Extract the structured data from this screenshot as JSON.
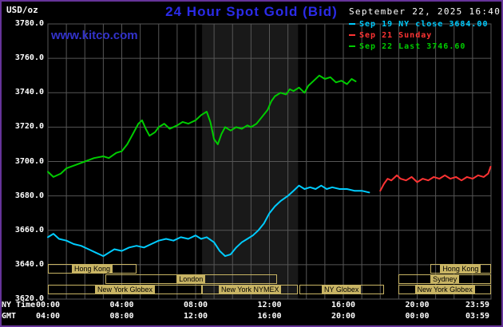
{
  "header": {
    "units": "USD/oz",
    "title": "24 Hour Spot Gold (Bid)",
    "datetime": "September 22, 2025 16:40",
    "watermark": "www.kitco.com"
  },
  "axis_corner": {
    "ny_time": "NY Time",
    "gmt": "GMT"
  },
  "colors": {
    "background": "#000000",
    "border": "#663399",
    "title_blue": "#2B2BE8",
    "watermark_blue": "#3333CC",
    "grid": "#565656",
    "axis_text": "#FFFFFF",
    "session": "#C8B464",
    "session_text": "#000000",
    "nymex_band": "#191919"
  },
  "legend": [
    {
      "label": "Sep 19 NY close 3684.00",
      "color": "#00CCFF"
    },
    {
      "label": "Sep 21 Sunday",
      "color": "#FF3333"
    },
    {
      "label": "Sep 22 Last 3746.60",
      "color": "#00CC00"
    }
  ],
  "chart_data": {
    "type": "line",
    "title": "24 Hour Spot Gold (Bid)",
    "ylabel": "USD/oz",
    "ylim": [
      3620,
      3780
    ],
    "xlim_hours": [
      0,
      24
    ],
    "grid": {
      "x_step_hours": 1,
      "y_step": 20
    },
    "prev_close": 3684.0,
    "last": 3746.6,
    "y_ticks": [
      {
        "value": 3780,
        "label": "3780.0"
      },
      {
        "value": 3760,
        "label": "3760.0"
      },
      {
        "value": 3740,
        "label": "3740.0"
      },
      {
        "value": 3720,
        "label": "3720.0"
      },
      {
        "value": 3700,
        "label": "3700.0"
      },
      {
        "value": 3680,
        "label": "3680.0"
      },
      {
        "value": 3660,
        "label": "3660.0"
      },
      {
        "value": 3640,
        "label": "3640.0"
      },
      {
        "value": 3620,
        "label": "3620.0"
      }
    ],
    "x_ticks": [
      {
        "hour": 0,
        "ny": "00:00",
        "gmt": "04:00"
      },
      {
        "hour": 4,
        "ny": "04:00",
        "gmt": "08:00"
      },
      {
        "hour": 8,
        "ny": "08:00",
        "gmt": "12:00"
      },
      {
        "hour": 12,
        "ny": "12:00",
        "gmt": "16:00"
      },
      {
        "hour": 16,
        "ny": "16:00",
        "gmt": "20:00"
      },
      {
        "hour": 20,
        "ny": "20:00",
        "gmt": "00:00"
      },
      {
        "hour": 23.983,
        "ny": "23:59",
        "gmt": "03:59"
      }
    ],
    "highlight_band": {
      "start_hour": 8.35,
      "end_hour": 13.55
    },
    "sessions": [
      {
        "label": "Hong Kong",
        "row": 0,
        "start": 0,
        "end": 4.8
      },
      {
        "label": "Hong Kong",
        "row": 0,
        "start": 20.7,
        "end": 24
      },
      {
        "label": "London",
        "row": 1,
        "start": 3.1,
        "end": 12.4
      },
      {
        "label": "Sydney",
        "row": 1,
        "start": 19,
        "end": 24
      },
      {
        "label": "New York Globex",
        "row": 2,
        "start": 0,
        "end": 8.35
      },
      {
        "label": "New York NYMEX",
        "row": 2,
        "start": 8.35,
        "end": 13.55
      },
      {
        "label": "NY Globex",
        "row": 2,
        "start": 13.6,
        "end": 18.2
      },
      {
        "label": "New York Globex",
        "row": 2,
        "start": 19,
        "end": 24
      }
    ],
    "series": [
      {
        "name": "Sep 19 NY close",
        "color": "#00CCFF",
        "points": [
          [
            0,
            3656
          ],
          [
            0.3,
            3658
          ],
          [
            0.6,
            3655
          ],
          [
            1,
            3654
          ],
          [
            1.4,
            3652
          ],
          [
            1.8,
            3651
          ],
          [
            2.2,
            3649
          ],
          [
            2.6,
            3647
          ],
          [
            3,
            3645
          ],
          [
            3.3,
            3647
          ],
          [
            3.6,
            3649
          ],
          [
            4,
            3648
          ],
          [
            4.4,
            3650
          ],
          [
            4.8,
            3651
          ],
          [
            5.2,
            3650
          ],
          [
            5.6,
            3652
          ],
          [
            6,
            3654
          ],
          [
            6.4,
            3655
          ],
          [
            6.8,
            3654
          ],
          [
            7.2,
            3656
          ],
          [
            7.6,
            3655
          ],
          [
            8,
            3657
          ],
          [
            8.3,
            3655
          ],
          [
            8.6,
            3656
          ],
          [
            9,
            3653
          ],
          [
            9.3,
            3648
          ],
          [
            9.6,
            3645
          ],
          [
            9.9,
            3646
          ],
          [
            10.2,
            3650
          ],
          [
            10.5,
            3653
          ],
          [
            10.8,
            3655
          ],
          [
            11.1,
            3657
          ],
          [
            11.4,
            3660
          ],
          [
            11.7,
            3664
          ],
          [
            12,
            3670
          ],
          [
            12.3,
            3674
          ],
          [
            12.6,
            3677
          ],
          [
            13,
            3680
          ],
          [
            13.3,
            3683
          ],
          [
            13.6,
            3686
          ],
          [
            13.9,
            3684
          ],
          [
            14.2,
            3685
          ],
          [
            14.5,
            3684
          ],
          [
            14.8,
            3686
          ],
          [
            15.1,
            3684
          ],
          [
            15.4,
            3685
          ],
          [
            15.8,
            3684
          ],
          [
            16.2,
            3684
          ],
          [
            16.6,
            3683
          ],
          [
            17,
            3683
          ],
          [
            17.4,
            3682
          ]
        ]
      },
      {
        "name": "Sep 21 Sunday",
        "color": "#FF3333",
        "points": [
          [
            18,
            3683
          ],
          [
            18.2,
            3687
          ],
          [
            18.4,
            3690
          ],
          [
            18.6,
            3689
          ],
          [
            18.9,
            3692
          ],
          [
            19.1,
            3690
          ],
          [
            19.4,
            3689
          ],
          [
            19.7,
            3691
          ],
          [
            20,
            3688
          ],
          [
            20.3,
            3690
          ],
          [
            20.6,
            3689
          ],
          [
            20.9,
            3691
          ],
          [
            21.2,
            3690
          ],
          [
            21.5,
            3692
          ],
          [
            21.8,
            3690
          ],
          [
            22.1,
            3691
          ],
          [
            22.4,
            3689
          ],
          [
            22.7,
            3691
          ],
          [
            23,
            3690
          ],
          [
            23.3,
            3692
          ],
          [
            23.6,
            3691
          ],
          [
            23.85,
            3693
          ],
          [
            23.98,
            3697
          ]
        ]
      },
      {
        "name": "Sep 22 Last",
        "color": "#00CC00",
        "points": [
          [
            0,
            3694
          ],
          [
            0.3,
            3691
          ],
          [
            0.7,
            3693
          ],
          [
            1,
            3696
          ],
          [
            1.5,
            3698
          ],
          [
            2,
            3700
          ],
          [
            2.5,
            3702
          ],
          [
            3,
            3703
          ],
          [
            3.3,
            3702
          ],
          [
            3.7,
            3705
          ],
          [
            4,
            3706
          ],
          [
            4.3,
            3710
          ],
          [
            4.6,
            3716
          ],
          [
            4.9,
            3722
          ],
          [
            5.1,
            3724
          ],
          [
            5.3,
            3719
          ],
          [
            5.5,
            3715
          ],
          [
            5.8,
            3717
          ],
          [
            6,
            3720
          ],
          [
            6.3,
            3722
          ],
          [
            6.6,
            3719
          ],
          [
            7,
            3721
          ],
          [
            7.3,
            3723
          ],
          [
            7.6,
            3722
          ],
          [
            8,
            3724
          ],
          [
            8.3,
            3727
          ],
          [
            8.6,
            3729
          ],
          [
            8.8,
            3723
          ],
          [
            9,
            3713
          ],
          [
            9.2,
            3710
          ],
          [
            9.4,
            3716
          ],
          [
            9.6,
            3720
          ],
          [
            9.9,
            3718
          ],
          [
            10.2,
            3720
          ],
          [
            10.5,
            3719
          ],
          [
            10.8,
            3721
          ],
          [
            11,
            3720
          ],
          [
            11.3,
            3722
          ],
          [
            11.6,
            3726
          ],
          [
            11.9,
            3730
          ],
          [
            12.1,
            3735
          ],
          [
            12.3,
            3738
          ],
          [
            12.6,
            3740
          ],
          [
            12.9,
            3739
          ],
          [
            13.1,
            3742
          ],
          [
            13.3,
            3741
          ],
          [
            13.6,
            3743
          ],
          [
            13.9,
            3740
          ],
          [
            14.1,
            3744
          ],
          [
            14.4,
            3747
          ],
          [
            14.7,
            3750
          ],
          [
            15,
            3748
          ],
          [
            15.3,
            3749
          ],
          [
            15.6,
            3746
          ],
          [
            15.9,
            3747
          ],
          [
            16.2,
            3745
          ],
          [
            16.45,
            3748
          ],
          [
            16.67,
            3746.6
          ]
        ]
      }
    ]
  }
}
